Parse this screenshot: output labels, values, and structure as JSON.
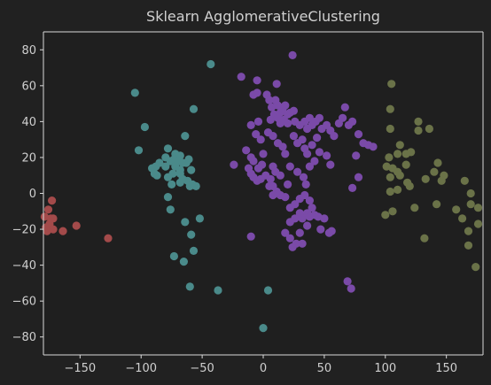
{
  "chart_data": {
    "type": "scatter",
    "title": "Sklearn AgglomerativeClustering",
    "xlabel": "",
    "ylabel": "",
    "xlim": [
      -180,
      180
    ],
    "ylim": [
      -90,
      90
    ],
    "xticks": [
      -150,
      -100,
      -50,
      0,
      50,
      100,
      150
    ],
    "yticks": [
      -80,
      -60,
      -40,
      -20,
      0,
      20,
      40,
      60,
      80
    ],
    "grid": false,
    "colors": {
      "background": "#212121",
      "axes": "#1f1f1f",
      "spine": "#d9d9d9",
      "text": "#cfcfcf"
    },
    "series": [
      {
        "color": "#a34a4a",
        "points": [
          [
            -173,
            -4
          ],
          [
            -176,
            -9
          ],
          [
            -179,
            -13
          ],
          [
            -174,
            -14
          ],
          [
            -172,
            -14
          ],
          [
            -178,
            -19
          ],
          [
            -175,
            -17
          ],
          [
            -172,
            -20
          ],
          [
            -177,
            -21
          ],
          [
            -164,
            -21
          ],
          [
            -153,
            -18
          ],
          [
            -127,
            -25
          ]
        ]
      },
      {
        "color": "#4a8a8a",
        "points": [
          [
            -105,
            56
          ],
          [
            -43,
            72
          ],
          [
            -97,
            37
          ],
          [
            -57,
            47
          ],
          [
            -64,
            32
          ],
          [
            -102,
            24
          ],
          [
            -78,
            25
          ],
          [
            -72,
            22
          ],
          [
            -68,
            21
          ],
          [
            -80,
            20
          ],
          [
            -76,
            18
          ],
          [
            -73,
            19
          ],
          [
            -70,
            18
          ],
          [
            -66,
            17
          ],
          [
            -63,
            17
          ],
          [
            -61,
            19
          ],
          [
            -59,
            13
          ],
          [
            -68,
            13
          ],
          [
            -72,
            15
          ],
          [
            -80,
            15
          ],
          [
            -85,
            17
          ],
          [
            -88,
            15
          ],
          [
            -91,
            14
          ],
          [
            -89,
            11
          ],
          [
            -87,
            10
          ],
          [
            -78,
            9
          ],
          [
            -74,
            11
          ],
          [
            -68,
            11
          ],
          [
            -66,
            8
          ],
          [
            -62,
            7
          ],
          [
            -58,
            5
          ],
          [
            -55,
            4
          ],
          [
            -60,
            4
          ],
          [
            -75,
            5
          ],
          [
            -68,
            6
          ],
          [
            -78,
            -2
          ],
          [
            -76,
            -9
          ],
          [
            -64,
            -16
          ],
          [
            -52,
            -14
          ],
          [
            -59,
            -23
          ],
          [
            -57,
            -32
          ],
          [
            -73,
            -35
          ],
          [
            -65,
            -38
          ],
          [
            -60,
            -52
          ],
          [
            -37,
            -54
          ],
          [
            4,
            -54
          ],
          [
            0,
            -75
          ]
        ]
      },
      {
        "color": "#7a4aa8",
        "points": [
          [
            24,
            77
          ],
          [
            -18,
            65
          ],
          [
            -5,
            63
          ],
          [
            11,
            61
          ],
          [
            -8,
            55
          ],
          [
            -5,
            56
          ],
          [
            3,
            55
          ],
          [
            5,
            52
          ],
          [
            10,
            52
          ],
          [
            7,
            48
          ],
          [
            12,
            49
          ],
          [
            14,
            45
          ],
          [
            16,
            47
          ],
          [
            18,
            49
          ],
          [
            20,
            44
          ],
          [
            22,
            45
          ],
          [
            25,
            46
          ],
          [
            9,
            44
          ],
          [
            6,
            41
          ],
          [
            12,
            42
          ],
          [
            14,
            39
          ],
          [
            17,
            41
          ],
          [
            20,
            39
          ],
          [
            26,
            40
          ],
          [
            30,
            38
          ],
          [
            34,
            40
          ],
          [
            36,
            36
          ],
          [
            38,
            42
          ],
          [
            40,
            38
          ],
          [
            43,
            40
          ],
          [
            46,
            42
          ],
          [
            48,
            36
          ],
          [
            52,
            38
          ],
          [
            55,
            35
          ],
          [
            -4,
            40
          ],
          [
            -10,
            38
          ],
          [
            -6,
            33
          ],
          [
            -2,
            30
          ],
          [
            4,
            34
          ],
          [
            8,
            32
          ],
          [
            12,
            28
          ],
          [
            16,
            26
          ],
          [
            18,
            22
          ],
          [
            25,
            32
          ],
          [
            28,
            28
          ],
          [
            32,
            30
          ],
          [
            34,
            25
          ],
          [
            36,
            22
          ],
          [
            40,
            27
          ],
          [
            44,
            31
          ],
          [
            46,
            23
          ],
          [
            42,
            18
          ],
          [
            38,
            15
          ],
          [
            52,
            21
          ],
          [
            55,
            16
          ],
          [
            58,
            32
          ],
          [
            62,
            39
          ],
          [
            65,
            42
          ],
          [
            67,
            48
          ],
          [
            70,
            38
          ],
          [
            73,
            40
          ],
          [
            78,
            33
          ],
          [
            82,
            28
          ],
          [
            86,
            27
          ],
          [
            90,
            26
          ],
          [
            76,
            21
          ],
          [
            -24,
            16
          ],
          [
            -14,
            24
          ],
          [
            -10,
            20
          ],
          [
            -8,
            18
          ],
          [
            -12,
            14
          ],
          [
            -10,
            11
          ],
          [
            -8,
            9
          ],
          [
            -5,
            7
          ],
          [
            -2,
            8
          ],
          [
            2,
            10
          ],
          [
            6,
            8
          ],
          [
            10,
            12
          ],
          [
            14,
            10
          ],
          [
            8,
            15
          ],
          [
            0,
            22
          ],
          [
            -4,
            14
          ],
          [
            -1,
            16
          ],
          [
            22,
            15
          ],
          [
            28,
            12
          ],
          [
            33,
            9
          ],
          [
            35,
            5
          ],
          [
            20,
            5
          ],
          [
            18,
            -2
          ],
          [
            14,
            -1
          ],
          [
            11,
            1
          ],
          [
            5,
            4
          ],
          [
            8,
            -1
          ],
          [
            22,
            -8
          ],
          [
            26,
            -6
          ],
          [
            30,
            -3
          ],
          [
            34,
            -1
          ],
          [
            38,
            -4
          ],
          [
            40,
            -8
          ],
          [
            36,
            -11
          ],
          [
            32,
            -14
          ],
          [
            30,
            -11
          ],
          [
            26,
            -14
          ],
          [
            22,
            -16
          ],
          [
            18,
            -22
          ],
          [
            22,
            -25
          ],
          [
            27,
            -28
          ],
          [
            30,
            -22
          ],
          [
            36,
            -18
          ],
          [
            38,
            -13
          ],
          [
            42,
            -12
          ],
          [
            45,
            -13
          ],
          [
            50,
            -14
          ],
          [
            56,
            -21
          ],
          [
            54,
            -22
          ],
          [
            47,
            -20
          ],
          [
            32,
            -28
          ],
          [
            24,
            -30
          ],
          [
            -10,
            -24
          ],
          [
            8,
            4
          ],
          [
            73,
            3
          ],
          [
            78,
            9
          ],
          [
            69,
            -49
          ],
          [
            72,
            -53
          ]
        ]
      },
      {
        "color": "#6a7248",
        "points": [
          [
            105,
            61
          ],
          [
            104,
            47
          ],
          [
            104,
            36
          ],
          [
            127,
            40
          ],
          [
            136,
            36
          ],
          [
            127,
            35
          ],
          [
            112,
            27
          ],
          [
            110,
            22
          ],
          [
            103,
            20
          ],
          [
            117,
            22
          ],
          [
            121,
            23
          ],
          [
            101,
            15
          ],
          [
            106,
            14
          ],
          [
            110,
            12
          ],
          [
            117,
            16
          ],
          [
            143,
            17
          ],
          [
            112,
            10
          ],
          [
            104,
            9
          ],
          [
            118,
            6
          ],
          [
            133,
            8
          ],
          [
            140,
            12
          ],
          [
            146,
            7
          ],
          [
            148,
            10
          ],
          [
            165,
            7
          ],
          [
            170,
            0
          ],
          [
            104,
            1
          ],
          [
            110,
            2
          ],
          [
            120,
            4
          ],
          [
            106,
            -10
          ],
          [
            100,
            -12
          ],
          [
            124,
            -8
          ],
          [
            142,
            -6
          ],
          [
            158,
            -9
          ],
          [
            170,
            -6
          ],
          [
            176,
            -8
          ],
          [
            176,
            -17
          ],
          [
            163,
            -14
          ],
          [
            168,
            -21
          ],
          [
            132,
            -25
          ],
          [
            168,
            -29
          ],
          [
            174,
            -41
          ]
        ]
      }
    ]
  }
}
